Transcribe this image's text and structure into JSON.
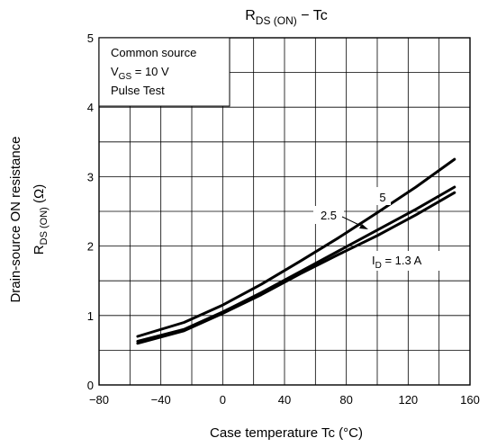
{
  "chart_data": {
    "type": "line",
    "title_main": "R",
    "title_sub": "DS (ON)",
    "title_rest": " − Tc",
    "xlabel": "Case temperature   Tc   (°C)",
    "ylabel_line1": "Drain-source ON resistance",
    "ylabel_line2_main": "R",
    "ylabel_line2_sub": "DS (ON)",
    "ylabel_line2_unit": "(Ω)",
    "xlim": [
      -80,
      160
    ],
    "ylim": [
      0,
      5
    ],
    "x_ticks": [
      -80,
      -40,
      0,
      40,
      80,
      120,
      160
    ],
    "x_tick_labels": [
      "−80",
      "−40",
      "0",
      "40",
      "80",
      "120",
      "160"
    ],
    "y_ticks": [
      0,
      1,
      2,
      3,
      4,
      5
    ],
    "y_tick_labels": [
      "0",
      "1",
      "2",
      "3",
      "4",
      "5"
    ],
    "grid": true,
    "minor_x_step": 20,
    "minor_y_step": 0.5,
    "annotation_box": {
      "line1": "Common source",
      "line2_main": "V",
      "line2_sub": "GS",
      "line2_rest": " = 10 V",
      "line3": "Pulse Test"
    },
    "series": [
      {
        "name": "5",
        "x": [
          -55,
          -25,
          0,
          25,
          50,
          75,
          100,
          125,
          150
        ],
        "y": [
          0.7,
          0.9,
          1.15,
          1.45,
          1.78,
          2.12,
          2.48,
          2.85,
          3.25
        ]
      },
      {
        "name": "2.5",
        "x": [
          -55,
          -25,
          0,
          25,
          50,
          75,
          100,
          125,
          150
        ],
        "y": [
          0.63,
          0.8,
          1.05,
          1.33,
          1.63,
          1.93,
          2.23,
          2.53,
          2.85
        ]
      },
      {
        "name": "I_D = 1.3 A",
        "x": [
          -55,
          -25,
          0,
          25,
          50,
          75,
          100,
          125,
          150
        ],
        "y": [
          0.6,
          0.78,
          1.03,
          1.3,
          1.6,
          1.88,
          2.15,
          2.45,
          2.77
        ]
      }
    ],
    "curve_labels": [
      {
        "text": "5",
        "sub": "",
        "rest": ""
      },
      {
        "text": "2.5",
        "sub": "",
        "rest": ""
      },
      {
        "text": "I",
        "sub": "D",
        "rest": " = 1.3 A"
      }
    ]
  }
}
